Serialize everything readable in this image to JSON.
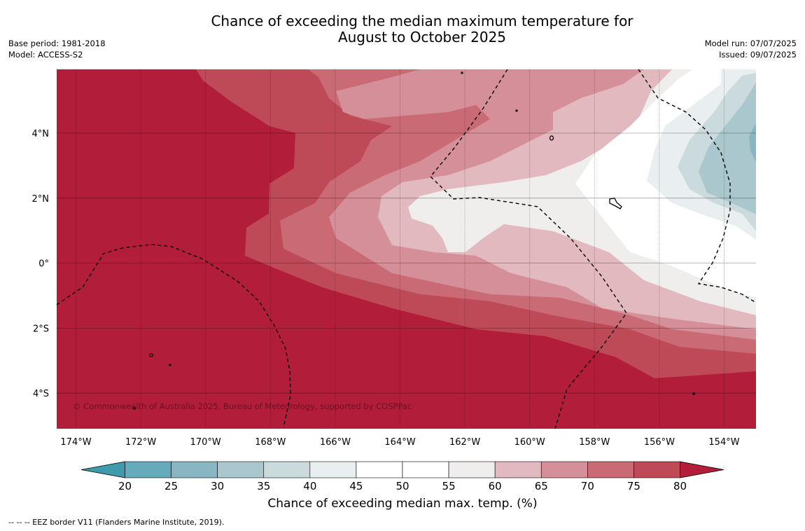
{
  "title_line1": "Chance of exceeding the median maximum temperature for",
  "title_line2": "August to October 2025",
  "meta_left": {
    "base_period": "Base period: 1981-2018",
    "model": "Model: ACCESS-S2"
  },
  "meta_right": {
    "model_run": "Model run: 07/07/2025",
    "issued": "Issued: 09/07/2025"
  },
  "map": {
    "lon_ticks": [
      "174°W",
      "172°W",
      "170°W",
      "168°W",
      "166°W",
      "164°W",
      "162°W",
      "160°W",
      "158°W",
      "156°W",
      "154°W"
    ],
    "lat_ticks": [
      "4°N",
      "2°N",
      "0°",
      "2°S",
      "4°S"
    ],
    "copyright": "© Commonwealth of Australia 2025, Bureau of Meteorology, supported by COSPPac"
  },
  "colorbar": {
    "ticks": [
      "20",
      "25",
      "30",
      "35",
      "40",
      "45",
      "50",
      "55",
      "60",
      "65",
      "70",
      "75",
      "80"
    ],
    "colors": [
      "#3f9aab",
      "#66abbb",
      "#88b6c3",
      "#a9c7cd",
      "#cbdadd",
      "#e9eff0",
      "#ffffff",
      "#ffffff",
      "#efeeed",
      "#e1b9be",
      "#d48f98",
      "#c96a74",
      "#bf4a57",
      "#b21d39"
    ],
    "label": "Chance of exceeding median max. temp. (%)"
  },
  "footnote": "--  --  -- EEZ border V11 (Flanders Marine Institute, 2019)."
}
